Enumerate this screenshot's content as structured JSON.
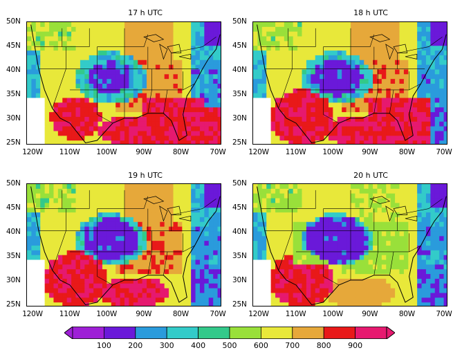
{
  "panels": [
    {
      "title": "17 h UTC"
    },
    {
      "title": "18 h UTC"
    },
    {
      "title": "19 h UTC"
    },
    {
      "title": "20 h UTC"
    }
  ],
  "lat_ticks": [
    "50N",
    "45N",
    "40N",
    "35N",
    "30N",
    "25N"
  ],
  "lon_ticks": [
    "120W",
    "110W",
    "100W",
    "90W",
    "80W",
    "70W"
  ],
  "colorbar": {
    "labels": [
      "100",
      "200",
      "300",
      "400",
      "500",
      "600",
      "700",
      "800",
      "900"
    ],
    "colors": [
      "#9e1fd6",
      "#6a19d9",
      "#2a9bdc",
      "#33cbc9",
      "#33c98a",
      "#99e03a",
      "#e8e83a",
      "#e6a83a",
      "#e81919",
      "#e6196f"
    ]
  }
}
